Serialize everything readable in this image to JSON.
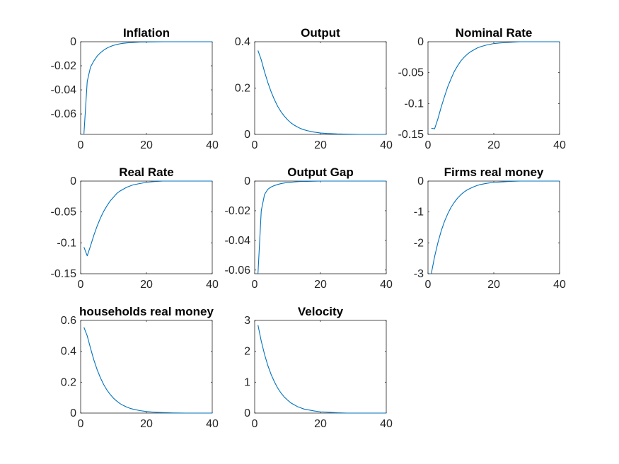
{
  "chart_data": [
    {
      "type": "line",
      "title": "Inflation",
      "xlim": [
        0,
        40
      ],
      "ylim": [
        -0.077,
        0
      ],
      "xticks": [
        0,
        20,
        40
      ],
      "xtick_labels": [
        "0",
        "20",
        "40"
      ],
      "yticks": [
        0,
        -0.02,
        -0.04,
        -0.06
      ],
      "ytick_labels": [
        "0",
        "-0.02",
        "-0.04",
        "-0.06"
      ],
      "grid": false,
      "series": [
        {
          "color": "#0072BD",
          "x": [
            1,
            2,
            3,
            4,
            5,
            6,
            7,
            8,
            9,
            10,
            11,
            12,
            13,
            14,
            15,
            16,
            18,
            20,
            22,
            25,
            28,
            32,
            36,
            40
          ],
          "y": [
            -0.0765,
            -0.033,
            -0.021,
            -0.016,
            -0.012,
            -0.0092,
            -0.007,
            -0.0053,
            -0.004,
            -0.003,
            -0.0023,
            -0.0017,
            -0.0013,
            -0.001,
            -0.0008,
            -0.0006,
            -0.0003,
            -0.0002,
            -0.0001,
            0,
            0,
            0,
            0,
            0
          ]
        }
      ]
    },
    {
      "type": "line",
      "title": "Output",
      "xlim": [
        0,
        40
      ],
      "ylim": [
        0,
        0.4
      ],
      "xticks": [
        0,
        20,
        40
      ],
      "xtick_labels": [
        "0",
        "20",
        "40"
      ],
      "yticks": [
        0.4,
        0.2,
        0
      ],
      "ytick_labels": [
        "0.4",
        "0.2",
        "0"
      ],
      "grid": false,
      "series": [
        {
          "color": "#0072BD",
          "x": [
            1,
            2,
            3,
            4,
            5,
            6,
            7,
            8,
            9,
            10,
            11,
            12,
            13,
            14,
            15,
            16,
            18,
            20,
            22,
            25,
            28,
            32,
            36,
            40
          ],
          "y": [
            0.362,
            0.322,
            0.27,
            0.224,
            0.184,
            0.15,
            0.121,
            0.098,
            0.079,
            0.063,
            0.05,
            0.04,
            0.032,
            0.025,
            0.02,
            0.016,
            0.01,
            0.006,
            0.004,
            0.002,
            0.001,
            0,
            0,
            0
          ]
        }
      ]
    },
    {
      "type": "line",
      "title": "Nominal Rate",
      "xlim": [
        0,
        40
      ],
      "ylim": [
        -0.15,
        0
      ],
      "xticks": [
        0,
        20,
        40
      ],
      "xtick_labels": [
        "0",
        "20",
        "40"
      ],
      "yticks": [
        0,
        -0.05,
        -0.1,
        -0.15
      ],
      "ytick_labels": [
        "0",
        "-0.05",
        "-0.1",
        "-0.15"
      ],
      "grid": false,
      "series": [
        {
          "color": "#0072BD",
          "x": [
            1,
            2,
            3,
            4,
            5,
            6,
            7,
            8,
            9,
            10,
            11,
            12,
            13,
            14,
            15,
            16,
            18,
            20,
            22,
            25,
            28,
            32,
            36,
            40
          ],
          "y": [
            -0.14,
            -0.141,
            -0.125,
            -0.106,
            -0.089,
            -0.073,
            -0.06,
            -0.048,
            -0.039,
            -0.031,
            -0.025,
            -0.02,
            -0.016,
            -0.013,
            -0.01,
            -0.008,
            -0.005,
            -0.003,
            -0.002,
            -0.001,
            0,
            0,
            0,
            0
          ]
        }
      ]
    },
    {
      "type": "line",
      "title": "Real Rate",
      "xlim": [
        0,
        40
      ],
      "ylim": [
        -0.15,
        0
      ],
      "xticks": [
        0,
        20,
        40
      ],
      "xtick_labels": [
        "0",
        "20",
        "40"
      ],
      "yticks": [
        0,
        -0.05,
        -0.1,
        -0.15
      ],
      "ytick_labels": [
        "0",
        "-0.05",
        "-0.1",
        "-0.15"
      ],
      "grid": false,
      "series": [
        {
          "color": "#0072BD",
          "x": [
            1,
            2,
            3,
            4,
            5,
            6,
            7,
            8,
            9,
            10,
            11,
            12,
            13,
            14,
            15,
            16,
            18,
            20,
            22,
            25,
            28,
            32,
            36,
            40
          ],
          "y": [
            -0.107,
            -0.121,
            -0.105,
            -0.088,
            -0.073,
            -0.06,
            -0.049,
            -0.04,
            -0.032,
            -0.026,
            -0.02,
            -0.016,
            -0.013,
            -0.01,
            -0.008,
            -0.006,
            -0.004,
            -0.002,
            -0.001,
            0,
            0,
            0,
            0,
            0
          ]
        }
      ]
    },
    {
      "type": "line",
      "title": "Output Gap",
      "xlim": [
        0,
        40
      ],
      "ylim": [
        -0.0625,
        0
      ],
      "xticks": [
        0,
        20,
        40
      ],
      "xtick_labels": [
        "0",
        "20",
        "40"
      ],
      "yticks": [
        0,
        -0.02,
        -0.04,
        -0.06
      ],
      "ytick_labels": [
        "0",
        "-0.02",
        "-0.04",
        "-0.06"
      ],
      "grid": false,
      "series": [
        {
          "color": "#0072BD",
          "x": [
            1,
            2,
            3,
            4,
            5,
            6,
            7,
            8,
            9,
            10,
            11,
            12,
            13,
            14,
            15,
            16,
            18,
            20,
            22,
            25,
            28,
            32,
            36,
            40
          ],
          "y": [
            -0.0625,
            -0.02,
            -0.009,
            -0.0055,
            -0.004,
            -0.003,
            -0.0023,
            -0.0017,
            -0.0013,
            -0.001,
            -0.0008,
            -0.0006,
            -0.0004,
            -0.0003,
            -0.0002,
            -0.0002,
            -0.0001,
            0,
            0,
            0,
            0,
            0,
            0,
            0
          ]
        }
      ]
    },
    {
      "type": "line",
      "title": "Firms real money",
      "xlim": [
        0,
        40
      ],
      "ylim": [
        -3,
        0
      ],
      "xticks": [
        0,
        20,
        40
      ],
      "xtick_labels": [
        "0",
        "20",
        "40"
      ],
      "yticks": [
        0,
        -1,
        -2,
        -3
      ],
      "ytick_labels": [
        "0",
        "-1",
        "-2",
        "-3"
      ],
      "grid": false,
      "series": [
        {
          "color": "#0072BD",
          "x": [
            1,
            2,
            3,
            4,
            5,
            6,
            7,
            8,
            9,
            10,
            11,
            12,
            13,
            14,
            15,
            16,
            18,
            20,
            22,
            25,
            28,
            32,
            36,
            40
          ],
          "y": [
            -3.0,
            -2.45,
            -2.0,
            -1.62,
            -1.31,
            -1.06,
            -0.85,
            -0.69,
            -0.55,
            -0.44,
            -0.35,
            -0.28,
            -0.23,
            -0.18,
            -0.14,
            -0.11,
            -0.07,
            -0.04,
            -0.03,
            -0.01,
            0,
            0,
            0,
            0
          ]
        }
      ]
    },
    {
      "type": "line",
      "title": "households real money",
      "xlim": [
        0,
        40
      ],
      "ylim": [
        0,
        0.6
      ],
      "xticks": [
        0,
        20,
        40
      ],
      "xtick_labels": [
        "0",
        "20",
        "40"
      ],
      "yticks": [
        0.6,
        0.4,
        0.2,
        0
      ],
      "ytick_labels": [
        "0.6",
        "0.4",
        "0.2",
        "0"
      ],
      "grid": false,
      "series": [
        {
          "color": "#0072BD",
          "x": [
            1,
            2,
            3,
            4,
            5,
            6,
            7,
            8,
            9,
            10,
            11,
            12,
            13,
            14,
            15,
            16,
            18,
            20,
            22,
            25,
            28,
            32,
            36,
            40
          ],
          "y": [
            0.555,
            0.5,
            0.42,
            0.345,
            0.282,
            0.229,
            0.185,
            0.149,
            0.12,
            0.096,
            0.077,
            0.061,
            0.049,
            0.039,
            0.031,
            0.025,
            0.016,
            0.01,
            0.006,
            0.003,
            0.001,
            0,
            0,
            0
          ]
        }
      ]
    },
    {
      "type": "line",
      "title": "Velocity",
      "xlim": [
        0,
        40
      ],
      "ylim": [
        0,
        3
      ],
      "xticks": [
        0,
        20,
        40
      ],
      "xtick_labels": [
        "0",
        "20",
        "40"
      ],
      "yticks": [
        3,
        2,
        1,
        0
      ],
      "ytick_labels": [
        "3",
        "2",
        "1",
        "0"
      ],
      "grid": false,
      "series": [
        {
          "color": "#0072BD",
          "x": [
            1,
            2,
            3,
            4,
            5,
            6,
            7,
            8,
            9,
            10,
            11,
            12,
            13,
            14,
            15,
            16,
            18,
            20,
            22,
            25,
            28,
            32,
            36,
            40
          ],
          "y": [
            2.85,
            2.33,
            1.9,
            1.54,
            1.25,
            1.01,
            0.81,
            0.65,
            0.52,
            0.42,
            0.33,
            0.27,
            0.21,
            0.17,
            0.13,
            0.11,
            0.07,
            0.04,
            0.03,
            0.01,
            0,
            0,
            0,
            0
          ]
        }
      ]
    }
  ]
}
